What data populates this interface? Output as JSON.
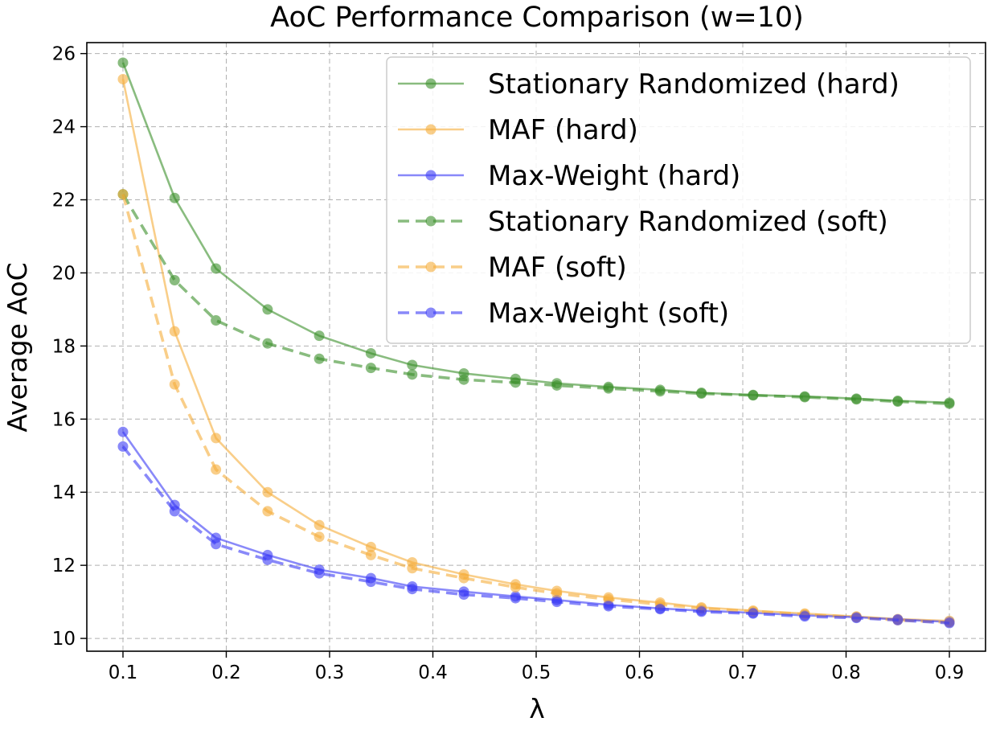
{
  "chart_data": {
    "type": "line",
    "title": "AoC Performance Comparison (w=10)",
    "xlabel": "λ",
    "ylabel": "Average AoC",
    "xlim": [
      0.065,
      0.935
    ],
    "ylim": [
      9.65,
      26.3
    ],
    "grid": true,
    "legend_position": "top-right",
    "x": [
      0.1,
      0.15,
      0.19,
      0.24,
      0.29,
      0.34,
      0.38,
      0.43,
      0.48,
      0.52,
      0.57,
      0.62,
      0.66,
      0.71,
      0.76,
      0.81,
      0.85,
      0.9
    ],
    "x_ticks": [
      "0.1",
      "0.2",
      "0.3",
      "0.4",
      "0.5",
      "0.6",
      "0.7",
      "0.8",
      "0.9"
    ],
    "y_ticks": [
      "10",
      "12",
      "14",
      "16",
      "18",
      "20",
      "22",
      "24",
      "26"
    ],
    "series": [
      {
        "name": "Stationary Randomized (hard)",
        "color": "#3a8f2a",
        "style": "solid",
        "values": [
          25.75,
          22.05,
          20.12,
          19.0,
          18.28,
          17.8,
          17.48,
          17.25,
          17.1,
          16.98,
          16.88,
          16.8,
          16.72,
          16.66,
          16.62,
          16.56,
          16.5,
          16.45
        ]
      },
      {
        "name": "MAF (hard)",
        "color": "#f5ad3a",
        "style": "solid",
        "values": [
          25.3,
          18.4,
          15.48,
          14.0,
          13.1,
          12.5,
          12.08,
          11.75,
          11.48,
          11.3,
          11.12,
          10.98,
          10.85,
          10.76,
          10.68,
          10.6,
          10.53,
          10.48
        ]
      },
      {
        "name": "Max-Weight (hard)",
        "color": "#3a3af5",
        "style": "solid",
        "values": [
          15.65,
          13.65,
          12.75,
          12.28,
          11.88,
          11.65,
          11.42,
          11.28,
          11.15,
          11.05,
          10.92,
          10.82,
          10.76,
          10.7,
          10.63,
          10.58,
          10.52,
          10.45
        ]
      },
      {
        "name": "Stationary Randomized (soft)",
        "color": "#3a8f2a",
        "style": "dashed",
        "values": [
          22.15,
          19.8,
          18.7,
          18.07,
          17.65,
          17.4,
          17.22,
          17.08,
          17.0,
          16.92,
          16.84,
          16.76,
          16.7,
          16.65,
          16.6,
          16.54,
          16.48,
          16.42
        ]
      },
      {
        "name": "MAF (soft)",
        "color": "#f5ad3a",
        "style": "dashed",
        "values": [
          22.15,
          16.95,
          14.62,
          13.48,
          12.78,
          12.28,
          11.92,
          11.65,
          11.4,
          11.23,
          11.07,
          10.93,
          10.82,
          10.74,
          10.66,
          10.58,
          10.5,
          10.44
        ]
      },
      {
        "name": "Max-Weight (soft)",
        "color": "#3a3af5",
        "style": "dashed",
        "values": [
          15.25,
          13.48,
          12.58,
          12.15,
          11.78,
          11.55,
          11.35,
          11.2,
          11.1,
          11.0,
          10.88,
          10.8,
          10.73,
          10.68,
          10.6,
          10.56,
          10.5,
          10.42
        ]
      }
    ]
  }
}
